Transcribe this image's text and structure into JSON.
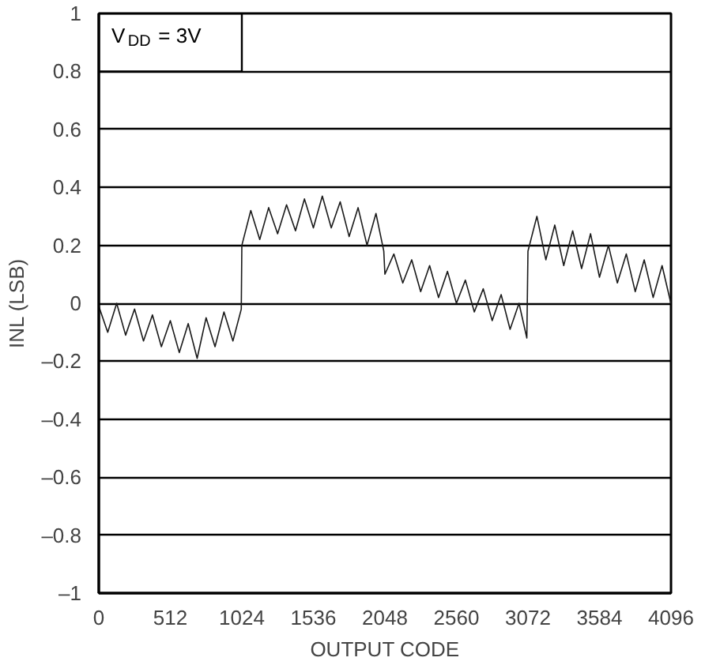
{
  "chart_data": {
    "type": "line",
    "xlabel": "OUTPUT CODE",
    "ylabel": "INL (LSB)",
    "annotations": [
      "V$_{DD}$ = 3V"
    ],
    "x": [
      0,
      64,
      128,
      192,
      256,
      320,
      384,
      448,
      512,
      576,
      640,
      704,
      768,
      832,
      896,
      960,
      1020,
      1024,
      1088,
      1152,
      1216,
      1280,
      1344,
      1408,
      1472,
      1536,
      1600,
      1664,
      1728,
      1792,
      1856,
      1920,
      1984,
      2040,
      2048,
      2112,
      2176,
      2240,
      2304,
      2368,
      2432,
      2496,
      2560,
      2624,
      2688,
      2752,
      2816,
      2880,
      2944,
      3008,
      3064,
      3072,
      3136,
      3200,
      3264,
      3328,
      3392,
      3456,
      3520,
      3584,
      3648,
      3712,
      3776,
      3840,
      3904,
      3968,
      4032,
      4095
    ],
    "series": [
      {
        "color": "#1a1a1a",
        "values": [
          -0.01,
          -0.1,
          0.0,
          -0.11,
          -0.02,
          -0.13,
          -0.04,
          -0.15,
          -0.06,
          -0.17,
          -0.07,
          -0.19,
          -0.05,
          -0.15,
          -0.03,
          -0.13,
          -0.02,
          0.2,
          0.32,
          0.22,
          0.33,
          0.24,
          0.34,
          0.25,
          0.36,
          0.26,
          0.37,
          0.26,
          0.35,
          0.23,
          0.33,
          0.2,
          0.31,
          0.18,
          0.1,
          0.17,
          0.07,
          0.15,
          0.04,
          0.13,
          0.02,
          0.11,
          0.0,
          0.08,
          -0.03,
          0.05,
          -0.06,
          0.03,
          -0.09,
          0.0,
          -0.12,
          0.18,
          0.3,
          0.15,
          0.27,
          0.13,
          0.25,
          0.12,
          0.24,
          0.09,
          0.2,
          0.07,
          0.17,
          0.04,
          0.15,
          0.02,
          0.13,
          0.0
        ]
      }
    ],
    "xlim": [
      0,
      4096
    ],
    "ylim": [
      -1,
      1
    ],
    "xticks": [
      0,
      512,
      1024,
      1536,
      2048,
      2560,
      3072,
      3584,
      4096
    ],
    "yticks": [
      {
        "value": -1,
        "label": "–1"
      },
      {
        "value": -0.8,
        "label": "–0.8"
      },
      {
        "value": -0.6,
        "label": "–0.6"
      },
      {
        "value": -0.4,
        "label": "–0.4"
      },
      {
        "value": -0.2,
        "label": "–0.2"
      },
      0,
      0.2,
      0.4,
      0.6,
      0.8,
      1
    ],
    "grid": "y",
    "marker": "none",
    "line_style": "solid"
  }
}
